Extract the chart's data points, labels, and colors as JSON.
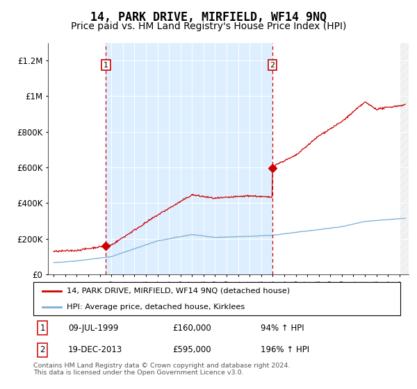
{
  "title": "14, PARK DRIVE, MIRFIELD, WF14 9NQ",
  "subtitle": "Price paid vs. HM Land Registry's House Price Index (HPI)",
  "title_fontsize": 12,
  "subtitle_fontsize": 10,
  "legend_line1": "14, PARK DRIVE, MIRFIELD, WF14 9NQ (detached house)",
  "legend_line2": "HPI: Average price, detached house, Kirklees",
  "sale1_date_str": "09-JUL-1999",
  "sale1_price_str": "£160,000",
  "sale1_hpi_str": "94% ↑ HPI",
  "sale2_date_str": "19-DEC-2013",
  "sale2_price_str": "£595,000",
  "sale2_hpi_str": "196% ↑ HPI",
  "footer": "Contains HM Land Registry data © Crown copyright and database right 2024.\nThis data is licensed under the Open Government Licence v3.0.",
  "sale1_x": 1999.52,
  "sale1_y": 160000,
  "sale2_x": 2013.97,
  "sale2_y": 595000,
  "red_color": "#cc0000",
  "blue_color": "#7aafd4",
  "bg_between_color": "#ddeeff",
  "ylim": [
    0,
    1300000
  ],
  "xlim": [
    1994.5,
    2025.8
  ],
  "yticks": [
    0,
    200000,
    400000,
    600000,
    800000,
    1000000,
    1200000
  ],
  "ytick_labels": [
    "£0",
    "£200K",
    "£400K",
    "£600K",
    "£800K",
    "£1M",
    "£1.2M"
  ],
  "xticks": [
    1995,
    1996,
    1997,
    1998,
    1999,
    2000,
    2001,
    2002,
    2003,
    2004,
    2005,
    2006,
    2007,
    2008,
    2009,
    2010,
    2011,
    2012,
    2013,
    2014,
    2015,
    2016,
    2017,
    2018,
    2019,
    2020,
    2021,
    2022,
    2023,
    2024,
    2025
  ]
}
